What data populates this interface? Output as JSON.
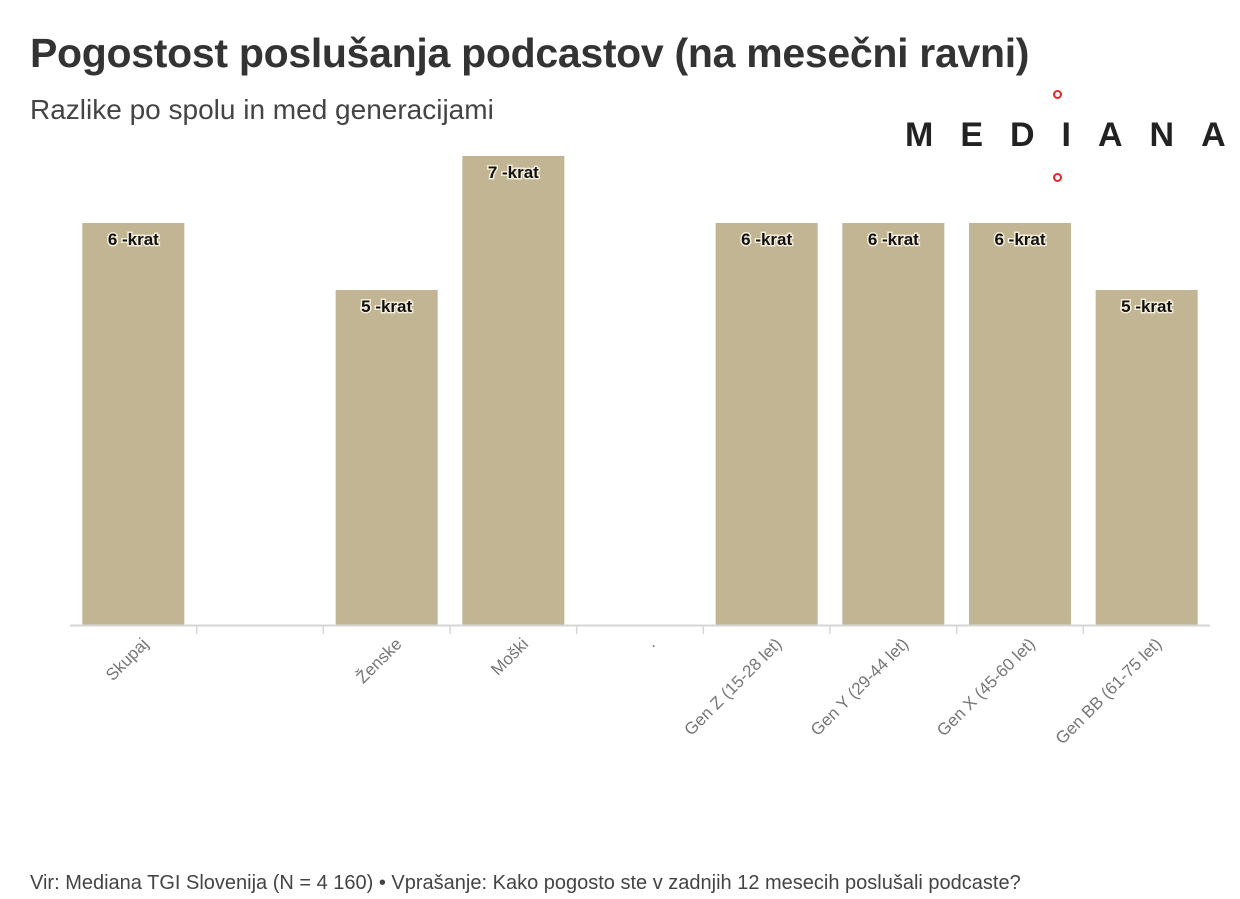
{
  "header": {
    "title": "Pogostost poslušanja podcastov (na mesečni ravni)",
    "subtitle": "Razlike po spolu in med generacijami"
  },
  "logo": {
    "text": "MEDIANA",
    "accent_color": "#e2262b"
  },
  "footer": {
    "source": "Vir: Mediana TGI Slovenija (N = 4 160) • Vprašanje: Kako pogosto ste v zadnjih 12 mesecih poslušali podcaste?"
  },
  "chart_data": {
    "type": "bar",
    "title": "Pogostost poslušanja podcastov (na mesečni ravni)",
    "subtitle": "Razlike po spolu in med generacijami",
    "categories": [
      "Skupaj",
      "",
      "Ženske",
      "Moški",
      ".",
      "Gen Z (15-28 let)",
      "Gen Y (29-44 let)",
      "Gen X (45-60 let)",
      "Gen BB (61-75 let)"
    ],
    "values": [
      6,
      null,
      5,
      7,
      null,
      6,
      6,
      6,
      5
    ],
    "data_labels": [
      "6 -krat",
      "",
      "5 -krat",
      "7 -krat",
      "",
      "6 -krat",
      "6 -krat",
      "6 -krat",
      "5 -krat"
    ],
    "ylim": [
      0,
      7
    ],
    "grid": false,
    "legend": "none",
    "bar_color": "#c2b593",
    "axis_color": "#d6d6d6"
  }
}
